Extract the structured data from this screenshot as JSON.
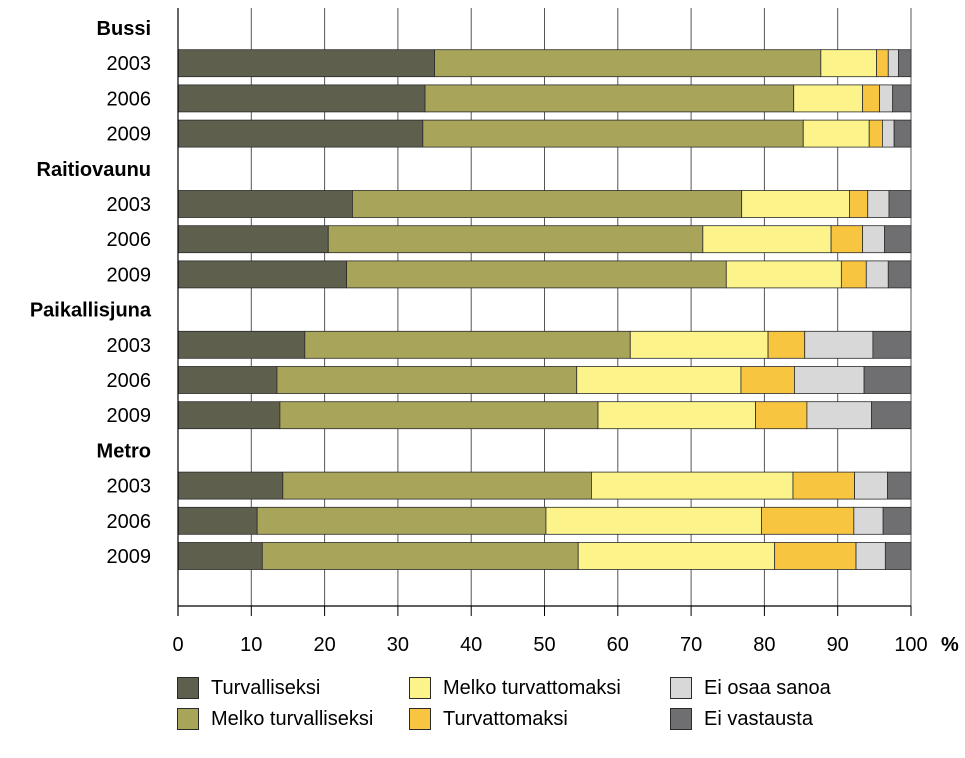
{
  "chart_data": {
    "type": "bar",
    "orientation": "horizontal",
    "stacked": true,
    "xlim": [
      0,
      100
    ],
    "xticks": [
      0,
      10,
      20,
      30,
      40,
      50,
      60,
      70,
      80,
      90,
      100
    ],
    "xunit": "%",
    "grid": true,
    "groups": [
      {
        "name": "Bussi",
        "rows": [
          {
            "year": "2003",
            "values": [
              35.0,
              52.7,
              7.6,
              1.6,
              1.4,
              1.7
            ]
          },
          {
            "year": "2006",
            "values": [
              33.7,
              50.3,
              9.4,
              2.3,
              1.8,
              2.5
            ]
          },
          {
            "year": "2009",
            "values": [
              33.4,
              51.9,
              9.0,
              1.8,
              1.6,
              2.3
            ]
          }
        ]
      },
      {
        "name": "Raitiovaunu",
        "rows": [
          {
            "year": "2003",
            "values": [
              23.8,
              53.1,
              14.7,
              2.5,
              2.9,
              3.0
            ]
          },
          {
            "year": "2006",
            "values": [
              20.5,
              51.1,
              17.5,
              4.3,
              3.0,
              3.6
            ]
          },
          {
            "year": "2009",
            "values": [
              23.0,
              51.8,
              15.7,
              3.4,
              3.0,
              3.1
            ]
          }
        ]
      },
      {
        "name": "Paikallisjuna",
        "rows": [
          {
            "year": "2003",
            "values": [
              17.3,
              44.4,
              18.8,
              5.0,
              9.3,
              5.2
            ]
          },
          {
            "year": "2006",
            "values": [
              13.5,
              40.9,
              22.4,
              7.3,
              9.5,
              6.4
            ]
          },
          {
            "year": "2009",
            "values": [
              13.9,
              43.4,
              21.5,
              7.0,
              8.8,
              5.4
            ]
          }
        ]
      },
      {
        "name": "Metro",
        "rows": [
          {
            "year": "2003",
            "values": [
              14.3,
              42.1,
              27.5,
              8.4,
              4.5,
              3.2
            ]
          },
          {
            "year": "2006",
            "values": [
              10.8,
              39.4,
              29.4,
              12.6,
              4.0,
              3.8
            ]
          },
          {
            "year": "2009",
            "values": [
              11.5,
              43.1,
              26.8,
              11.1,
              4.0,
              3.5
            ]
          }
        ]
      }
    ],
    "series": [
      {
        "name": "Turvalliseksi",
        "color": "#5f5f4e"
      },
      {
        "name": "Melko turvalliseksi",
        "color": "#a8a45a"
      },
      {
        "name": "Melko turvattomaksi",
        "color": "#fcf48a"
      },
      {
        "name": "Turvattomaksi",
        "color": "#f7c540"
      },
      {
        "name": "Ei osaa sanoa",
        "color": "#d8d8d8"
      },
      {
        "name": "Ei vastausta",
        "color": "#6f6f72"
      }
    ],
    "legend_position": "bottom"
  }
}
